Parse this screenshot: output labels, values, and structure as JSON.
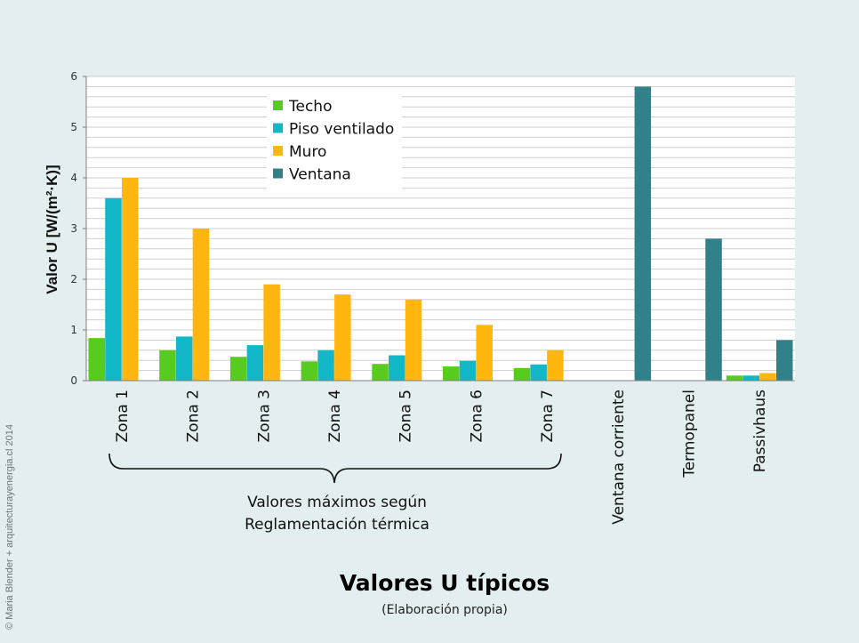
{
  "chart_data": {
    "type": "bar",
    "title": "Valores U típicos",
    "subtitle": "(Elaboración propia)",
    "ylabel": "Valor U [W/(m²·K)]",
    "ylim": [
      0,
      6
    ],
    "yticks": [
      "0",
      "1",
      "2",
      "3",
      "4",
      "5",
      "6"
    ],
    "grid": true,
    "legend_position": "top-center",
    "categories": [
      "Zona 1",
      "Zona 2",
      "Zona 3",
      "Zona 4",
      "Zona 5",
      "Zona 6",
      "Zona 7",
      "Ventana corriente",
      "Termopanel",
      "Passivhaus"
    ],
    "series": [
      {
        "name": "Techo",
        "color": "#58cc1e",
        "values": [
          0.84,
          0.6,
          0.47,
          0.38,
          0.33,
          0.28,
          0.25,
          null,
          null,
          0.1
        ]
      },
      {
        "name": "Piso ventilado",
        "color": "#13b8c8",
        "values": [
          3.6,
          0.87,
          0.7,
          0.6,
          0.5,
          0.39,
          0.32,
          null,
          null,
          0.1
        ]
      },
      {
        "name": "Muro",
        "color": "#ffb70f",
        "values": [
          4.0,
          3.0,
          1.9,
          1.7,
          1.6,
          1.1,
          0.6,
          null,
          null,
          0.15
        ]
      },
      {
        "name": "Ventana",
        "color": "#30818a",
        "values": [
          null,
          null,
          null,
          null,
          null,
          null,
          null,
          5.8,
          2.8,
          0.8
        ]
      }
    ],
    "bracket_annotation": [
      "Valores máximos según",
      "Reglamentación térmica"
    ]
  },
  "watermark": "© Maria Blender +  arquitecturayenergia.cl 2014"
}
